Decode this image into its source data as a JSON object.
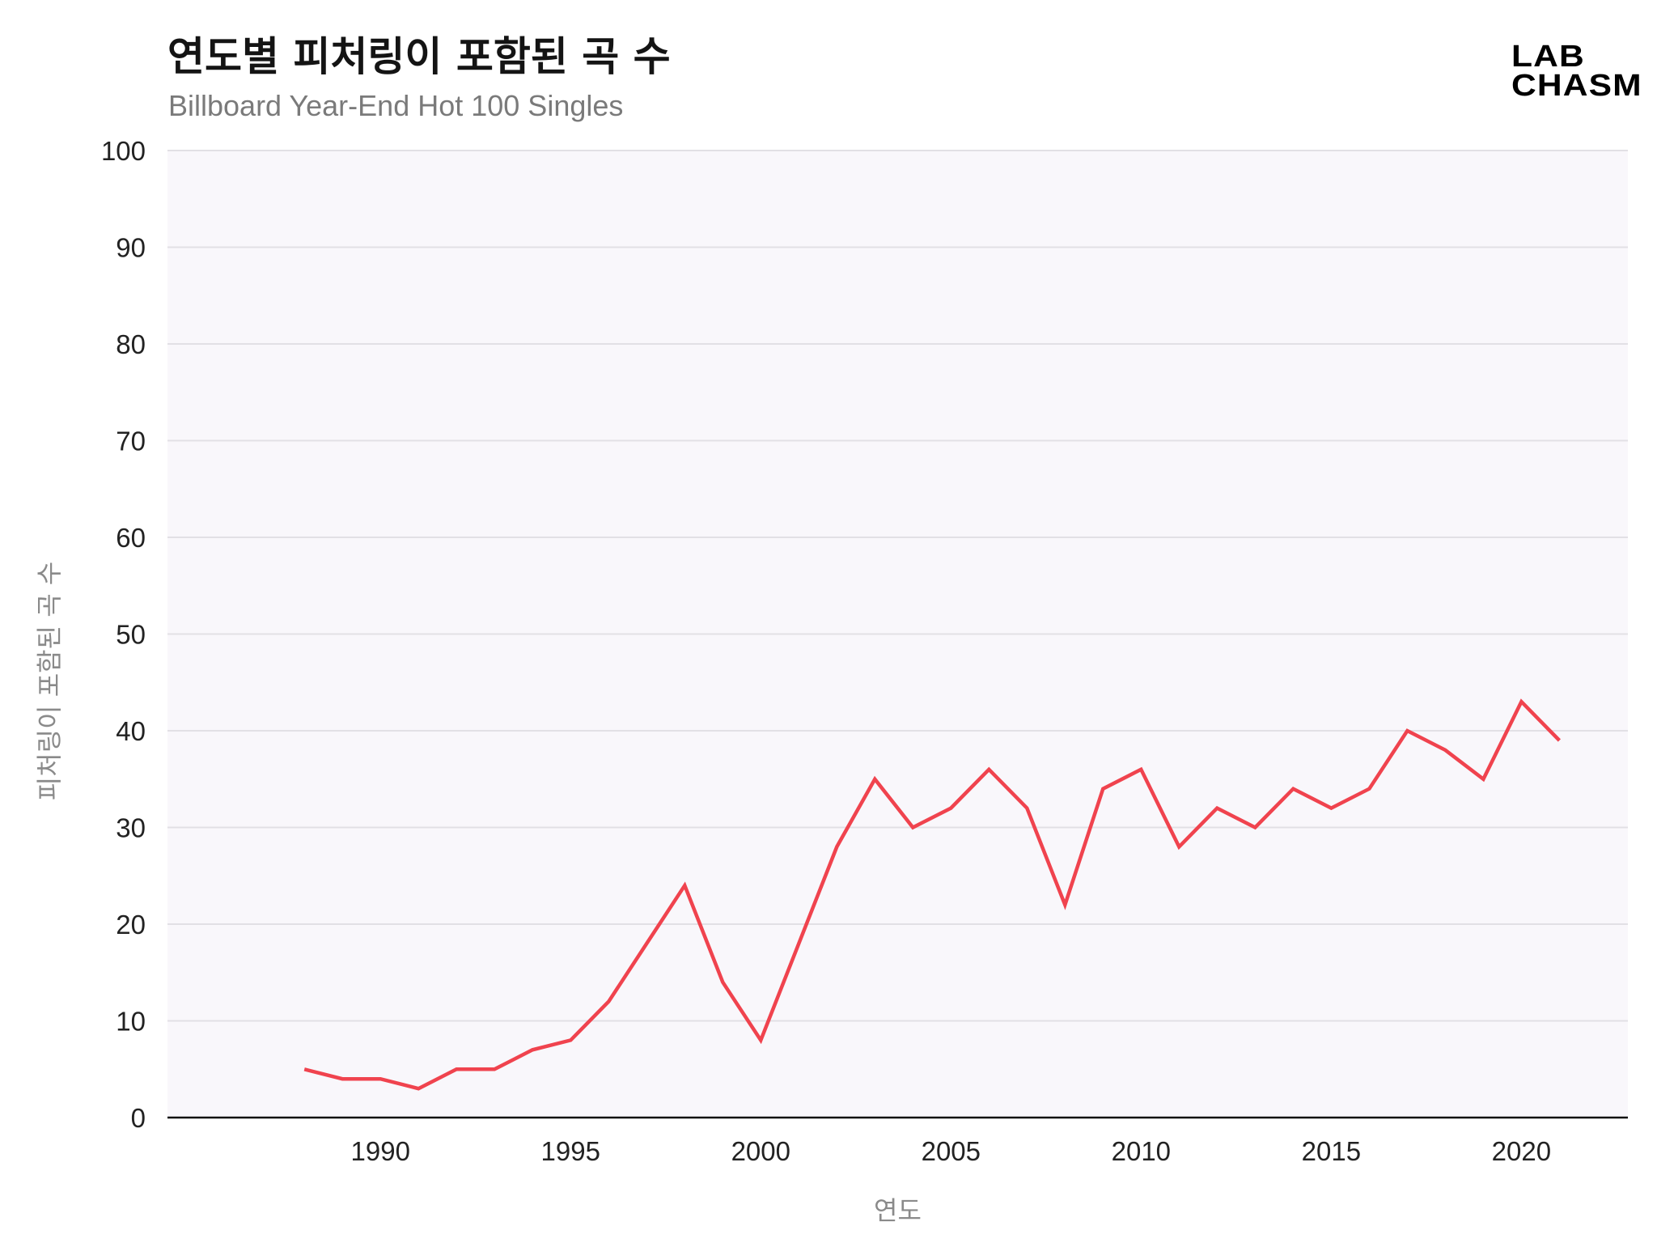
{
  "title": "연도별 피처링이 포함된 곡 수",
  "subtitle": "Billboard Year-End Hot 100 Singles",
  "logo": {
    "line1": "LAB",
    "line2": "CHASM"
  },
  "chart_data": {
    "type": "line",
    "title": "연도별 피처링이 포함된 곡 수",
    "subtitle": "Billboard Year-End Hot 100 Singles",
    "xlabel": "연도",
    "ylabel": "피처링이 포함된 곡 수",
    "xlim": [
      1984.4,
      2022.8
    ],
    "ylim": [
      0,
      100
    ],
    "x_ticks": [
      1990,
      1995,
      2000,
      2005,
      2010,
      2015,
      2020
    ],
    "y_ticks": [
      0,
      10,
      20,
      30,
      40,
      50,
      60,
      70,
      80,
      90,
      100
    ],
    "grid": true,
    "line_color": "#f0434e",
    "background_color": "#f9f7fb",
    "series": [
      {
        "x": [
          1988,
          1989,
          1990,
          1991,
          1992,
          1993,
          1994,
          1995,
          1996,
          1997,
          1998,
          1999,
          2000,
          2001,
          2002,
          2003,
          2004,
          2005,
          2006,
          2007,
          2008,
          2009,
          2010,
          2011,
          2012,
          2013,
          2014,
          2015,
          2016,
          2017,
          2018,
          2019,
          2020,
          2021
        ],
        "values": [
          5,
          4,
          4,
          3,
          5,
          5,
          7,
          8,
          12,
          18,
          24,
          14,
          8,
          18,
          28,
          35,
          30,
          32,
          36,
          32,
          22,
          34,
          36,
          28,
          32,
          30,
          34,
          32,
          34,
          40,
          38,
          35,
          43,
          39
        ]
      }
    ]
  }
}
